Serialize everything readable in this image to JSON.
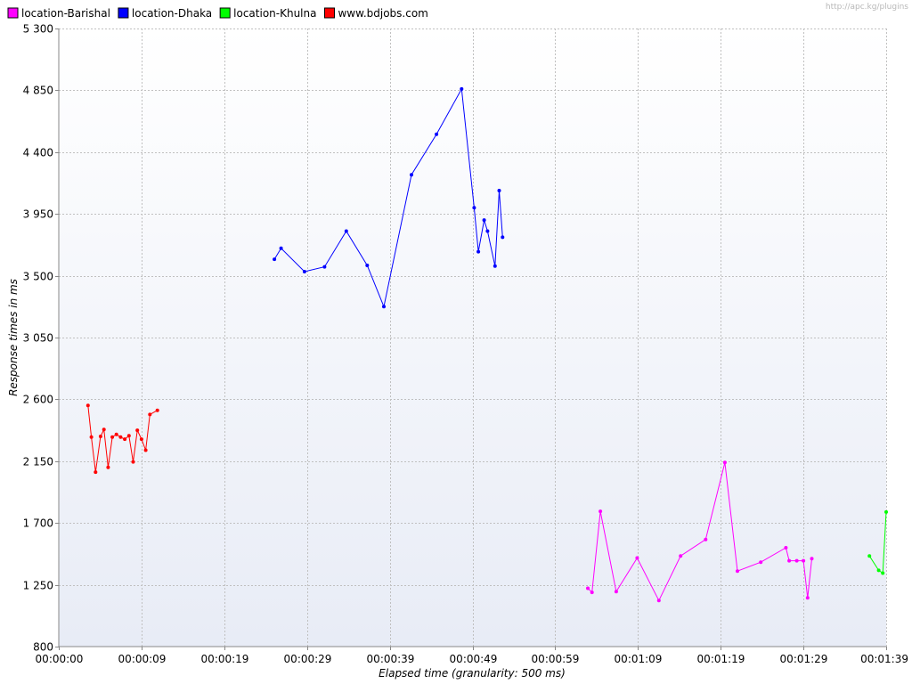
{
  "watermark": "http://apc.kg/plugins",
  "chart_data": {
    "type": "line",
    "title": "",
    "xlabel": "Elapsed time (granularity: 500 ms)",
    "ylabel": "Response times in ms",
    "x_unit": "seconds elapsed",
    "xlim": [
      0,
      99
    ],
    "ylim": [
      800,
      5300
    ],
    "yticks": [
      800,
      1250,
      1700,
      2150,
      2600,
      3050,
      3500,
      3950,
      4400,
      4850,
      5300
    ],
    "ytick_labels": [
      "800",
      "1 250",
      "1 700",
      "2 150",
      "2 600",
      "3 050",
      "3 500",
      "3 950",
      "4 400",
      "4 850",
      "5 300"
    ],
    "xticks": [
      0,
      9.9,
      19.8,
      29.7,
      39.6,
      49.5,
      59.4,
      69.3,
      79.2,
      89.1,
      99
    ],
    "xtick_labels": [
      "00:00:00",
      "00:00:09",
      "00:00:19",
      "00:00:29",
      "00:00:39",
      "00:00:49",
      "00:00:59",
      "00:01:09",
      "00:01:19",
      "00:01:29",
      "00:01:39"
    ],
    "grid": true,
    "legend": "top-left",
    "series": [
      {
        "name": "location-Barishal",
        "color": "#ff00ff",
        "points": [
          [
            63.3,
            1225
          ],
          [
            63.8,
            1195
          ],
          [
            64.8,
            1785
          ],
          [
            66.7,
            1200
          ],
          [
            69.2,
            1445
          ],
          [
            71.8,
            1135
          ],
          [
            74.4,
            1460
          ],
          [
            77.4,
            1580
          ],
          [
            79.7,
            2140
          ],
          [
            81.2,
            1350
          ],
          [
            84.0,
            1415
          ],
          [
            87.0,
            1520
          ],
          [
            87.4,
            1425
          ],
          [
            88.3,
            1425
          ],
          [
            89.1,
            1425
          ],
          [
            89.6,
            1155
          ],
          [
            90.1,
            1440
          ]
        ]
      },
      {
        "name": "location-Dhaka",
        "color": "#0000ff",
        "points": [
          [
            25.8,
            3620
          ],
          [
            26.6,
            3700
          ],
          [
            29.4,
            3530
          ],
          [
            31.8,
            3565
          ],
          [
            34.4,
            3825
          ],
          [
            36.9,
            3575
          ],
          [
            38.9,
            3275
          ],
          [
            42.2,
            4235
          ],
          [
            45.2,
            4530
          ],
          [
            48.2,
            4860
          ],
          [
            49.7,
            3995
          ],
          [
            50.2,
            3675
          ],
          [
            50.9,
            3905
          ],
          [
            51.3,
            3825
          ],
          [
            52.2,
            3570
          ],
          [
            52.7,
            4120
          ],
          [
            53.1,
            3780
          ]
        ]
      },
      {
        "name": "location-Khulna",
        "color": "#00ff00",
        "points": [
          [
            97.0,
            1460
          ],
          [
            98.1,
            1355
          ],
          [
            98.6,
            1335
          ],
          [
            99.0,
            1780
          ]
        ]
      },
      {
        "name": "www.bdjobs.com",
        "color": "#ff0000",
        "points": [
          [
            3.5,
            2555
          ],
          [
            3.9,
            2325
          ],
          [
            4.4,
            2070
          ],
          [
            5.0,
            2330
          ],
          [
            5.4,
            2380
          ],
          [
            5.9,
            2105
          ],
          [
            6.4,
            2325
          ],
          [
            6.9,
            2345
          ],
          [
            7.4,
            2325
          ],
          [
            7.9,
            2310
          ],
          [
            8.4,
            2335
          ],
          [
            8.9,
            2145
          ],
          [
            9.4,
            2375
          ],
          [
            9.9,
            2310
          ],
          [
            10.4,
            2230
          ],
          [
            10.9,
            2490
          ],
          [
            11.8,
            2520
          ]
        ]
      }
    ]
  }
}
